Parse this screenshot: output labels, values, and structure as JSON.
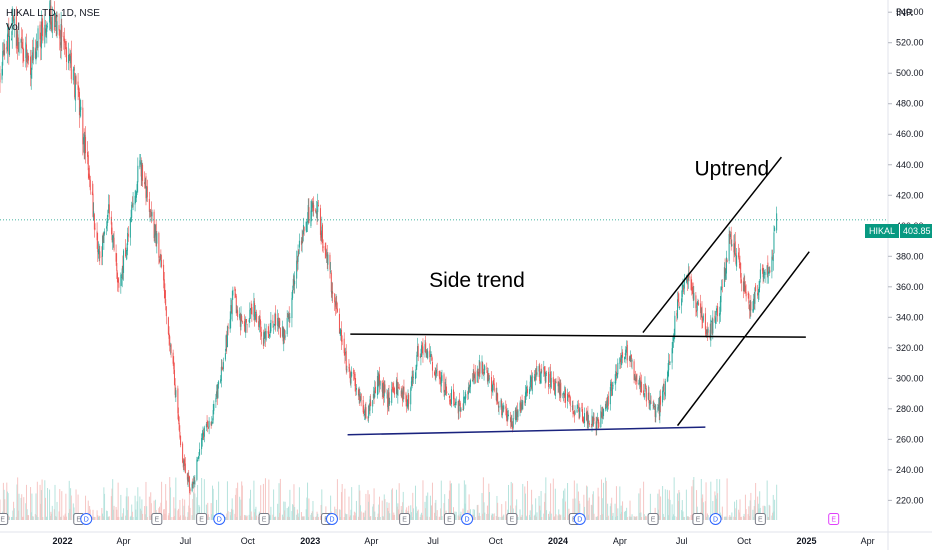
{
  "header": {
    "title": "HIKAL LTD, 1D, NSE",
    "volume_label": "Vol",
    "currency": "INR"
  },
  "price_tag": {
    "symbol": "HIKAL",
    "value": "403.85"
  },
  "colors": {
    "up": "#26a69a",
    "down": "#ef5350",
    "support_line": "#1a237e",
    "trend_line": "#000000",
    "current_price_line": "#089981",
    "dividend_event": "#2962ff",
    "earnings_future": "#e040fb"
  },
  "chart_data": {
    "type": "candlestick",
    "title": "HIKAL LTD, 1D, NSE",
    "ylim": [
      215,
      548
    ],
    "y_ticks": [
      "220.00",
      "240.00",
      "260.00",
      "280.00",
      "300.00",
      "320.00",
      "340.00",
      "360.00",
      "380.00",
      "400.00",
      "420.00",
      "440.00",
      "460.00",
      "480.00",
      "500.00",
      "520.00",
      "540.00"
    ],
    "x_ticks": [
      {
        "label": "2022",
        "major": true
      },
      {
        "label": "Apr",
        "major": false
      },
      {
        "label": "Jul",
        "major": false
      },
      {
        "label": "Oct",
        "major": false
      },
      {
        "label": "2023",
        "major": true
      },
      {
        "label": "Apr",
        "major": false
      },
      {
        "label": "Jul",
        "major": false
      },
      {
        "label": "Oct",
        "major": false
      },
      {
        "label": "2024",
        "major": true
      },
      {
        "label": "Apr",
        "major": false
      },
      {
        "label": "Jul",
        "major": false
      },
      {
        "label": "Oct",
        "major": false
      },
      {
        "label": "2025",
        "major": true
      },
      {
        "label": "Apr",
        "major": false
      }
    ],
    "x_range": [
      "2021-10",
      "2025-05"
    ],
    "last_price": 403.85,
    "price_path": [
      [
        "2021-10-01",
        500
      ],
      [
        "2021-10-20",
        530
      ],
      [
        "2021-11-15",
        505
      ],
      [
        "2021-12-10",
        540
      ],
      [
        "2022-01-05",
        520
      ],
      [
        "2022-01-25",
        480
      ],
      [
        "2022-02-10",
        430
      ],
      [
        "2022-02-25",
        375
      ],
      [
        "2022-03-10",
        415
      ],
      [
        "2022-03-25",
        360
      ],
      [
        "2022-04-10",
        400
      ],
      [
        "2022-04-25",
        440
      ],
      [
        "2022-05-10",
        410
      ],
      [
        "2022-05-25",
        380
      ],
      [
        "2022-06-10",
        320
      ],
      [
        "2022-06-25",
        250
      ],
      [
        "2022-07-10",
        225
      ],
      [
        "2022-07-25",
        260
      ],
      [
        "2022-08-10",
        275
      ],
      [
        "2022-08-25",
        310
      ],
      [
        "2022-09-10",
        355
      ],
      [
        "2022-09-25",
        330
      ],
      [
        "2022-10-10",
        345
      ],
      [
        "2022-10-25",
        325
      ],
      [
        "2022-11-10",
        340
      ],
      [
        "2022-11-25",
        325
      ],
      [
        "2022-12-10",
        370
      ],
      [
        "2022-12-25",
        405
      ],
      [
        "2023-01-10",
        415
      ],
      [
        "2023-01-25",
        380
      ],
      [
        "2023-02-10",
        340
      ],
      [
        "2023-02-25",
        305
      ],
      [
        "2023-03-10",
        295
      ],
      [
        "2023-03-25",
        275
      ],
      [
        "2023-04-10",
        300
      ],
      [
        "2023-04-25",
        285
      ],
      [
        "2023-05-10",
        295
      ],
      [
        "2023-05-25",
        285
      ],
      [
        "2023-06-10",
        320
      ],
      [
        "2023-06-25",
        315
      ],
      [
        "2023-07-10",
        300
      ],
      [
        "2023-07-25",
        290
      ],
      [
        "2023-08-10",
        280
      ],
      [
        "2023-08-25",
        295
      ],
      [
        "2023-09-10",
        310
      ],
      [
        "2023-09-25",
        295
      ],
      [
        "2023-10-10",
        280
      ],
      [
        "2023-10-25",
        270
      ],
      [
        "2023-11-10",
        285
      ],
      [
        "2023-11-25",
        300
      ],
      [
        "2023-12-10",
        305
      ],
      [
        "2023-12-25",
        295
      ],
      [
        "2024-01-10",
        290
      ],
      [
        "2024-01-25",
        280
      ],
      [
        "2024-02-10",
        275
      ],
      [
        "2024-02-25",
        270
      ],
      [
        "2024-03-10",
        278
      ],
      [
        "2024-03-25",
        300
      ],
      [
        "2024-04-10",
        320
      ],
      [
        "2024-04-25",
        300
      ],
      [
        "2024-05-10",
        290
      ],
      [
        "2024-05-25",
        275
      ],
      [
        "2024-06-10",
        300
      ],
      [
        "2024-06-25",
        350
      ],
      [
        "2024-07-10",
        365
      ],
      [
        "2024-07-25",
        345
      ],
      [
        "2024-08-10",
        330
      ],
      [
        "2024-08-25",
        345
      ],
      [
        "2024-09-10",
        395
      ],
      [
        "2024-09-25",
        370
      ],
      [
        "2024-10-10",
        345
      ],
      [
        "2024-10-25",
        365
      ],
      [
        "2024-11-10",
        375
      ],
      [
        "2024-11-18",
        403.85
      ]
    ],
    "trend_lines": [
      {
        "role": "side-resistance",
        "from": [
          "2023-03-01",
          329
        ],
        "to": [
          "2024-12-31",
          327
        ]
      },
      {
        "role": "side-support",
        "from": [
          "2023-02-25",
          263
        ],
        "to": [
          "2024-08-05",
          268
        ]
      },
      {
        "role": "channel-upper",
        "from": [
          "2024-05-05",
          330
        ],
        "to": [
          "2024-11-25",
          445
        ]
      },
      {
        "role": "channel-lower",
        "from": [
          "2024-06-25",
          269
        ],
        "to": [
          "2025-01-05",
          383
        ]
      }
    ],
    "annotations": [
      {
        "text": "Side trend",
        "at": [
          "2023-06-25",
          360
        ]
      },
      {
        "text": "Uptrend",
        "at": [
          "2024-07-20",
          433
        ]
      }
    ],
    "events": [
      {
        "type": "E",
        "date": "2021-10-05"
      },
      {
        "type": "E",
        "date": "2022-01-25"
      },
      {
        "type": "D",
        "date": "2022-02-05"
      },
      {
        "type": "E",
        "date": "2022-05-20"
      },
      {
        "type": "E",
        "date": "2022-07-25"
      },
      {
        "type": "D",
        "date": "2022-08-20"
      },
      {
        "type": "E",
        "date": "2022-10-25"
      },
      {
        "type": "E",
        "date": "2023-01-25"
      },
      {
        "type": "D",
        "date": "2023-02-02"
      },
      {
        "type": "E",
        "date": "2023-05-20"
      },
      {
        "type": "E",
        "date": "2023-07-25"
      },
      {
        "type": "D",
        "date": "2023-08-20"
      },
      {
        "type": "E",
        "date": "2023-10-25"
      },
      {
        "type": "E",
        "date": "2024-01-25"
      },
      {
        "type": "D",
        "date": "2024-02-02"
      },
      {
        "type": "E",
        "date": "2024-05-20"
      },
      {
        "type": "E",
        "date": "2024-07-25"
      },
      {
        "type": "D",
        "date": "2024-08-20"
      },
      {
        "type": "E",
        "date": "2024-10-25"
      },
      {
        "type": "E-future",
        "date": "2025-02-10"
      }
    ]
  }
}
